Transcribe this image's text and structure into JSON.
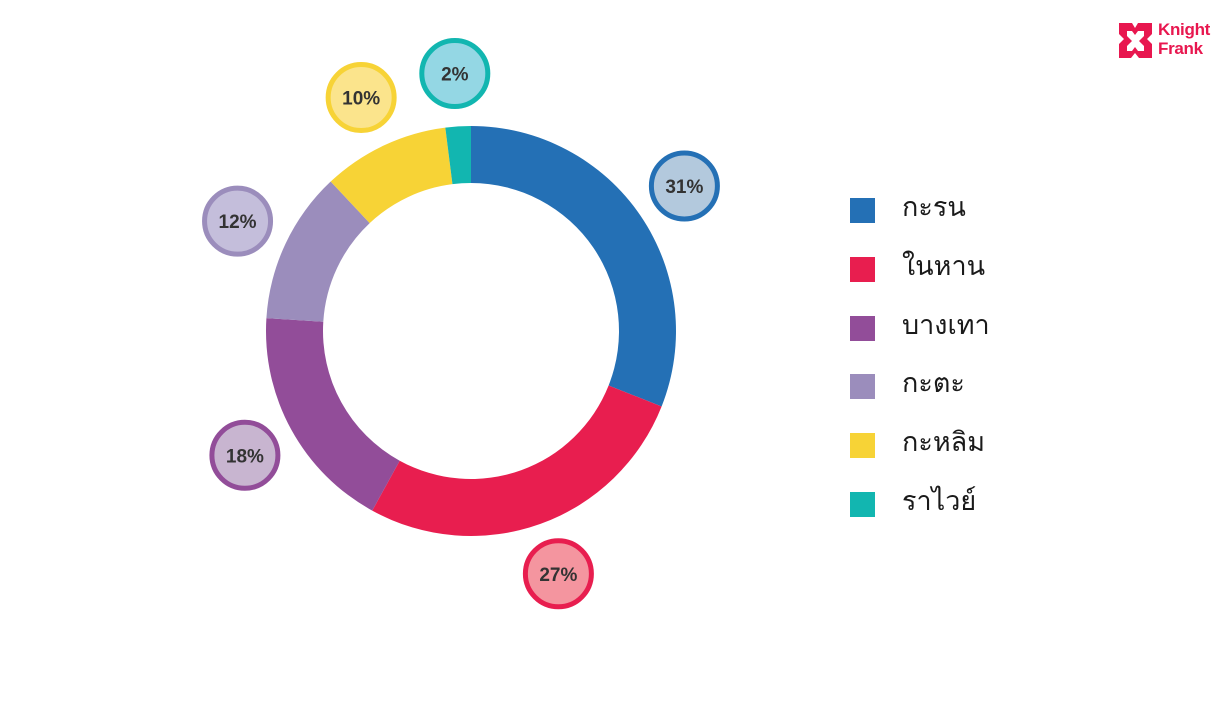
{
  "brand": {
    "line1": "Knight",
    "line2": "Frank",
    "color": "#e8174f"
  },
  "chart_data": {
    "type": "pie",
    "variant": "donut",
    "categories": [
      "กะรน",
      "ในหาน",
      "บางเทา",
      "กะตะ",
      "กะหลิม",
      "ราไวย์"
    ],
    "values": [
      31,
      27,
      18,
      12,
      10,
      2
    ],
    "value_labels": [
      "31%",
      "27%",
      "18%",
      "12%",
      "10%",
      "2%"
    ],
    "colors": [
      "#2470b5",
      "#e81e4f",
      "#924d99",
      "#9b8dbc",
      "#f7d336",
      "#12b6b0"
    ],
    "bubble_fill": [
      "#b3c9dd",
      "#f4959f",
      "#c8b5d0",
      "#c4bedb",
      "#fbe48c",
      "#94d7e4"
    ],
    "legend_position": "right",
    "title": "",
    "xlabel": "",
    "ylabel": ""
  }
}
